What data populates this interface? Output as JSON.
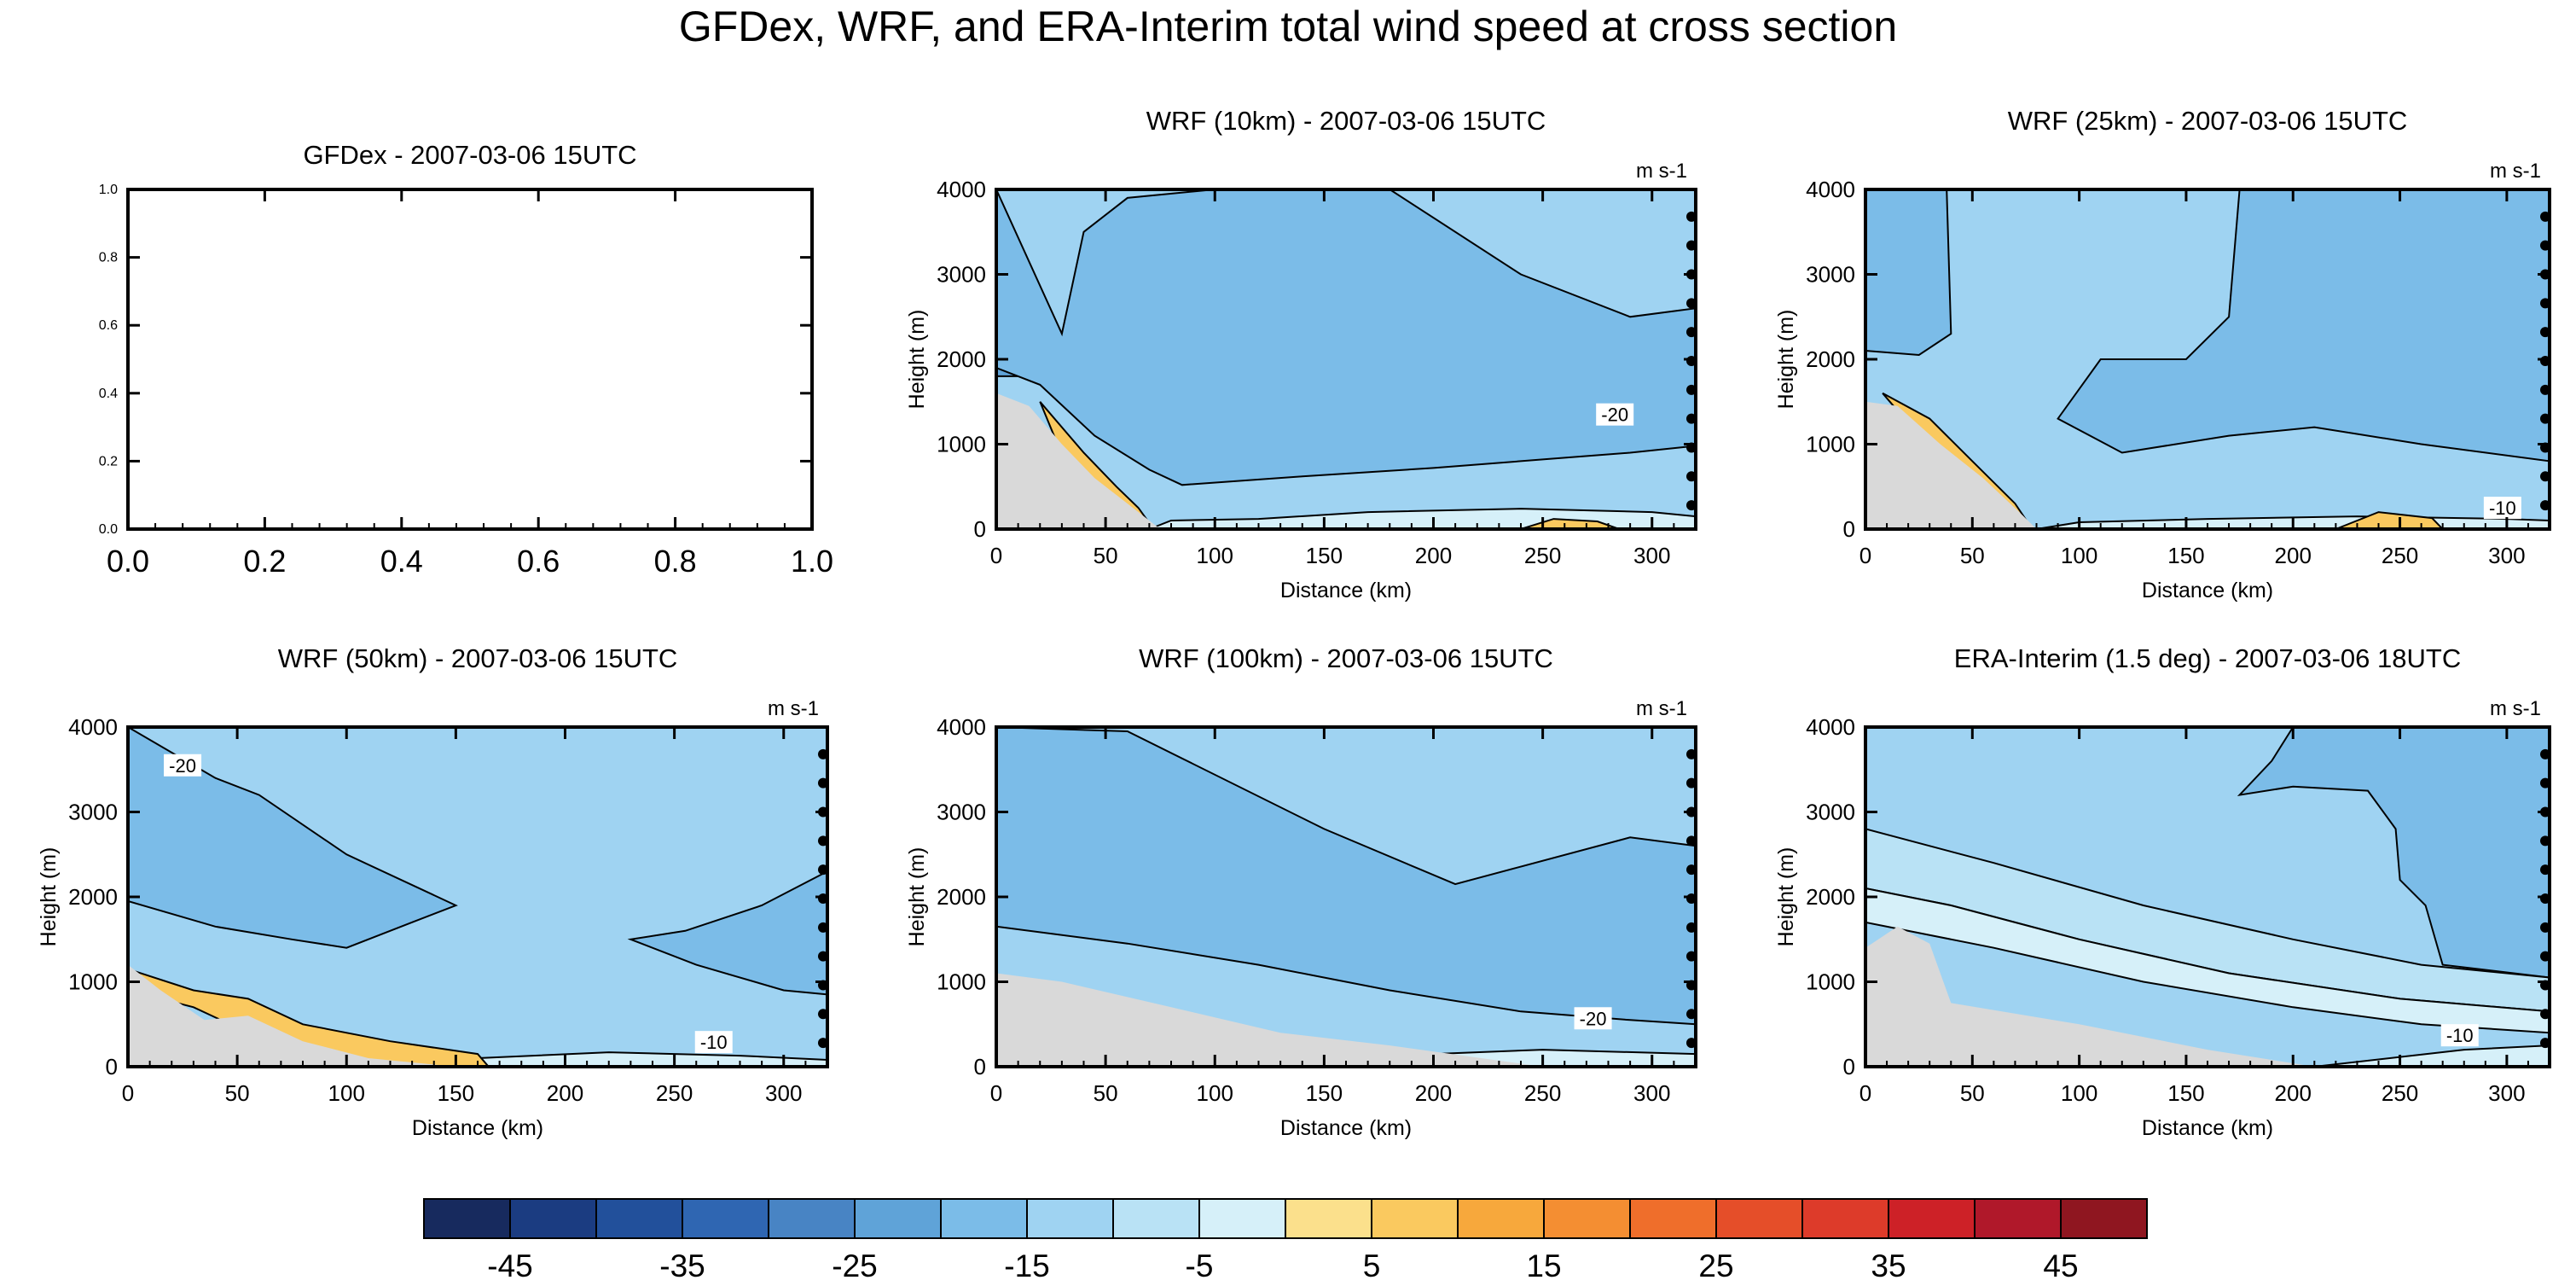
{
  "title": "GFDex, WRF, and ERA-Interim total wind speed at cross section",
  "units_label": "m s-1",
  "chart_data": [
    {
      "type": "contour",
      "title": "GFDex - 2007-03-06 15UTC",
      "xlabel": "",
      "ylabel": "",
      "xlim": [
        0,
        1
      ],
      "ylim": [
        0,
        1
      ],
      "xticks": [
        "0.0",
        "0.2",
        "0.4",
        "0.6",
        "0.8",
        "1.0"
      ],
      "yticks": [
        "0.0",
        "0.2",
        "0.4",
        "0.6",
        "0.8",
        "1.0"
      ],
      "empty": true
    },
    {
      "type": "contour",
      "title": "WRF (10km) - 2007-03-06 15UTC",
      "xlabel": "Distance (km)",
      "ylabel": "Height (m)",
      "xlim": [
        0,
        320
      ],
      "ylim": [
        0,
        4000
      ],
      "xticks": [
        "0",
        "50",
        "100",
        "150",
        "200",
        "250",
        "300"
      ],
      "yticks": [
        "0",
        "1000",
        "2000",
        "3000",
        "4000"
      ],
      "contour_labels": [
        {
          "text": "-20",
          "x": 283,
          "y": 1350
        }
      ],
      "terrain": [
        [
          0,
          1600
        ],
        [
          15,
          1450
        ],
        [
          30,
          1000
        ],
        [
          45,
          600
        ],
        [
          60,
          300
        ],
        [
          75,
          0
        ]
      ],
      "bands": [
        {
          "value": -25,
          "points": [
            [
              0,
              1800
            ],
            [
              8,
              3500
            ],
            [
              18,
              2700
            ],
            [
              15,
              1800
            ]
          ]
        },
        {
          "value": -20,
          "points": [
            [
              0,
              4000
            ],
            [
              0,
              1900
            ],
            [
              20,
              1700
            ],
            [
              45,
              1100
            ],
            [
              70,
              700
            ],
            [
              85,
              520
            ],
            [
              140,
              620
            ],
            [
              200,
              720
            ],
            [
              250,
              820
            ],
            [
              290,
              900
            ],
            [
              320,
              980
            ],
            [
              320,
              2600
            ],
            [
              290,
              2500
            ],
            [
              240,
              3000
            ],
            [
              180,
              4000
            ],
            [
              100,
              4000
            ],
            [
              60,
              3900
            ],
            [
              40,
              3500
            ],
            [
              30,
              2300
            ]
          ]
        },
        {
          "value": -5,
          "points": [
            [
              70,
              0
            ],
            [
              80,
              100
            ],
            [
              120,
              120
            ],
            [
              170,
              200
            ],
            [
              240,
              240
            ],
            [
              300,
              200
            ],
            [
              320,
              150
            ],
            [
              320,
              0
            ]
          ]
        },
        {
          "value": 5,
          "points": [
            [
              240,
              0
            ],
            [
              255,
              120
            ],
            [
              275,
              90
            ],
            [
              285,
              0
            ]
          ]
        },
        {
          "value": 5,
          "points": [
            [
              20,
              1500
            ],
            [
              40,
              900
            ],
            [
              55,
              500
            ],
            [
              65,
              250
            ],
            [
              72,
              0
            ],
            [
              55,
              0
            ],
            [
              40,
              500
            ],
            [
              28,
              1000
            ]
          ]
        }
      ]
    },
    {
      "type": "contour",
      "title": "WRF (25km) - 2007-03-06 15UTC",
      "xlabel": "Distance (km)",
      "ylabel": "Height (m)",
      "xlim": [
        0,
        320
      ],
      "ylim": [
        0,
        4000
      ],
      "xticks": [
        "0",
        "50",
        "100",
        "150",
        "200",
        "250",
        "300"
      ],
      "yticks": [
        "0",
        "1000",
        "2000",
        "3000",
        "4000"
      ],
      "contour_labels": [
        {
          "text": "-10",
          "x": 298,
          "y": 250
        }
      ],
      "terrain": [
        [
          0,
          1500
        ],
        [
          15,
          1450
        ],
        [
          35,
          1000
        ],
        [
          55,
          600
        ],
        [
          72,
          200
        ],
        [
          80,
          0
        ]
      ],
      "bands": [
        {
          "value": -20,
          "points": [
            [
              0,
              4000
            ],
            [
              0,
              2100
            ],
            [
              25,
              2050
            ],
            [
              40,
              2300
            ],
            [
              38,
              4000
            ]
          ]
        },
        {
          "value": -20,
          "points": [
            [
              90,
              1300
            ],
            [
              120,
              900
            ],
            [
              170,
              1100
            ],
            [
              210,
              1200
            ],
            [
              260,
              1000
            ],
            [
              320,
              800
            ],
            [
              320,
              4000
            ],
            [
              175,
              4000
            ],
            [
              170,
              2500
            ],
            [
              150,
              2000
            ],
            [
              110,
              2000
            ]
          ]
        },
        {
          "value": -5,
          "points": [
            [
              80,
              0
            ],
            [
              100,
              80
            ],
            [
              160,
              120
            ],
            [
              230,
              150
            ],
            [
              300,
              120
            ],
            [
              320,
              100
            ],
            [
              320,
              0
            ]
          ]
        },
        {
          "value": 5,
          "points": [
            [
              220,
              0
            ],
            [
              240,
              200
            ],
            [
              265,
              130
            ],
            [
              270,
              0
            ]
          ]
        },
        {
          "value": 5,
          "points": [
            [
              8,
              1600
            ],
            [
              30,
              1300
            ],
            [
              50,
              800
            ],
            [
              70,
              300
            ],
            [
              78,
              0
            ],
            [
              60,
              0
            ],
            [
              45,
              500
            ],
            [
              25,
              1100
            ]
          ]
        }
      ]
    },
    {
      "type": "contour",
      "title": "WRF (50km) - 2007-03-06 15UTC",
      "xlabel": "Distance (km)",
      "ylabel": "Height (m)",
      "xlim": [
        0,
        320
      ],
      "ylim": [
        0,
        4000
      ],
      "xticks": [
        "0",
        "50",
        "100",
        "150",
        "200",
        "250",
        "300"
      ],
      "yticks": [
        "0",
        "1000",
        "2000",
        "3000",
        "4000"
      ],
      "contour_labels": [
        {
          "text": "-20",
          "x": 25,
          "y": 3550
        },
        {
          "text": "-10",
          "x": 268,
          "y": 290
        }
      ],
      "terrain": [
        [
          0,
          1200
        ],
        [
          15,
          900
        ],
        [
          35,
          550
        ],
        [
          55,
          600
        ],
        [
          80,
          300
        ],
        [
          110,
          100
        ],
        [
          150,
          0
        ]
      ],
      "bands": [
        {
          "value": -20,
          "points": [
            [
              0,
              4000
            ],
            [
              0,
              1950
            ],
            [
              40,
              1650
            ],
            [
              75,
              1500
            ],
            [
              100,
              1400
            ],
            [
              130,
              1700
            ],
            [
              150,
              1900
            ],
            [
              100,
              2500
            ],
            [
              60,
              3200
            ],
            [
              40,
              3400
            ]
          ]
        },
        {
          "value": -20,
          "points": [
            [
              230,
              1500
            ],
            [
              260,
              1200
            ],
            [
              300,
              900
            ],
            [
              320,
              850
            ],
            [
              320,
              2300
            ],
            [
              290,
              1900
            ],
            [
              255,
              1600
            ]
          ]
        },
        {
          "value": -5,
          "points": [
            [
              120,
              0
            ],
            [
              160,
              100
            ],
            [
              220,
              170
            ],
            [
              280,
              130
            ],
            [
              320,
              80
            ],
            [
              320,
              0
            ]
          ]
        },
        {
          "value": 5,
          "points": [
            [
              0,
              1150
            ],
            [
              30,
              900
            ],
            [
              55,
              800
            ],
            [
              80,
              500
            ],
            [
              120,
              300
            ],
            [
              160,
              150
            ],
            [
              165,
              0
            ],
            [
              110,
              0
            ],
            [
              80,
              150
            ],
            [
              55,
              400
            ],
            [
              30,
              700
            ],
            [
              0,
              900
            ]
          ]
        }
      ]
    },
    {
      "type": "contour",
      "title": "WRF (100km) - 2007-03-06 15UTC",
      "xlabel": "Distance (km)",
      "ylabel": "Height (m)",
      "xlim": [
        0,
        320
      ],
      "ylim": [
        0,
        4000
      ],
      "xticks": [
        "0",
        "50",
        "100",
        "150",
        "200",
        "250",
        "300"
      ],
      "yticks": [
        "0",
        "1000",
        "2000",
        "3000",
        "4000"
      ],
      "contour_labels": [
        {
          "text": "-20",
          "x": 273,
          "y": 570
        }
      ],
      "terrain": [
        [
          0,
          1100
        ],
        [
          30,
          1000
        ],
        [
          80,
          700
        ],
        [
          130,
          400
        ],
        [
          180,
          250
        ],
        [
          250,
          0
        ]
      ],
      "bands": [
        {
          "value": -20,
          "points": [
            [
              0,
              4000
            ],
            [
              0,
              1650
            ],
            [
              60,
              1450
            ],
            [
              120,
              1200
            ],
            [
              180,
              900
            ],
            [
              240,
              650
            ],
            [
              290,
              550
            ],
            [
              320,
              500
            ],
            [
              320,
              2600
            ],
            [
              290,
              2700
            ],
            [
              210,
              2150
            ],
            [
              150,
              2800
            ],
            [
              60,
              3950
            ]
          ]
        },
        {
          "value": -5,
          "points": [
            [
              150,
              0
            ],
            [
              200,
              150
            ],
            [
              250,
              200
            ],
            [
              320,
              150
            ],
            [
              320,
              0
            ]
          ]
        }
      ]
    },
    {
      "type": "contour",
      "title": "ERA-Interim (1.5 deg) - 2007-03-06 18UTC",
      "xlabel": "Distance (km)",
      "ylabel": "Height (m)",
      "xlim": [
        0,
        320
      ],
      "ylim": [
        0,
        4000
      ],
      "xticks": [
        "0",
        "50",
        "100",
        "150",
        "200",
        "250",
        "300"
      ],
      "yticks": [
        "0",
        "1000",
        "2000",
        "3000",
        "4000"
      ],
      "contour_labels": [
        {
          "text": "-10",
          "x": 278,
          "y": 370
        }
      ],
      "terrain": [
        [
          0,
          1400
        ],
        [
          15,
          1650
        ],
        [
          30,
          1450
        ],
        [
          40,
          750
        ],
        [
          100,
          500
        ],
        [
          160,
          200
        ],
        [
          210,
          0
        ]
      ],
      "bands": [
        {
          "value": -20,
          "points": [
            [
              175,
              3200
            ],
            [
              190,
              3600
            ],
            [
              200,
              4000
            ],
            [
              320,
              4000
            ],
            [
              320,
              1050
            ],
            [
              270,
              1200
            ],
            [
              262,
              1900
            ],
            [
              250,
              2200
            ],
            [
              248,
              2800
            ],
            [
              235,
              3250
            ],
            [
              200,
              3300
            ]
          ]
        },
        {
          "value": -10,
          "points": [
            [
              0,
              2800
            ],
            [
              60,
              2400
            ],
            [
              130,
              1900
            ],
            [
              200,
              1500
            ],
            [
              260,
              1200
            ],
            [
              320,
              1050
            ],
            [
              320,
              650
            ],
            [
              250,
              800
            ],
            [
              170,
              1100
            ],
            [
              100,
              1500
            ],
            [
              40,
              1900
            ],
            [
              0,
              2100
            ]
          ]
        },
        {
          "value": -5,
          "points": [
            [
              0,
              2100
            ],
            [
              40,
              1900
            ],
            [
              100,
              1500
            ],
            [
              170,
              1100
            ],
            [
              250,
              800
            ],
            [
              320,
              650
            ],
            [
              320,
              400
            ],
            [
              260,
              500
            ],
            [
              200,
              700
            ],
            [
              130,
              1000
            ],
            [
              60,
              1400
            ],
            [
              0,
              1700
            ]
          ]
        },
        {
          "value": -5,
          "points": [
            [
              210,
              0
            ],
            [
              280,
              200
            ],
            [
              320,
              250
            ],
            [
              320,
              0
            ]
          ]
        }
      ]
    }
  ],
  "colorbar": {
    "ticks": [
      "-45",
      "-35",
      "-25",
      "-15",
      "-5",
      "5",
      "15",
      "25",
      "35",
      "45"
    ],
    "colors": [
      "#172a5e",
      "#1b3c81",
      "#22509b",
      "#2f66b2",
      "#4884c4",
      "#5fa3d8",
      "#7bbce8",
      "#9fd3f2",
      "#b9e2f5",
      "#d6f0f9",
      "#fbe08c",
      "#fac95f",
      "#f7a83c",
      "#f48e32",
      "#ef6e2b",
      "#e54e29",
      "#dd3b2a",
      "#cd2127",
      "#b0182a",
      "#8f1620"
    ],
    "min": -50,
    "max": 50
  }
}
